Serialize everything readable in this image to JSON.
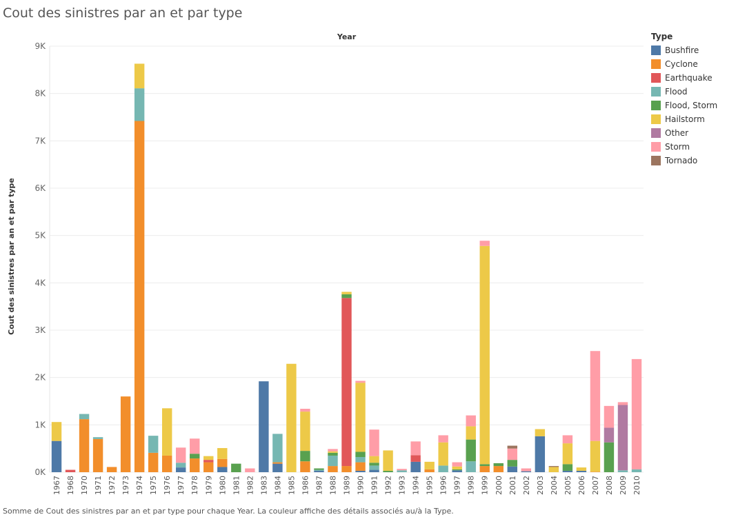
{
  "title": "Cout des sinistres par an et par type",
  "footer": "Somme de Cout des sinistres par an et par type pour chaque Year.  La couleur affiche des détails associés au/à la Type.",
  "chart_data": {
    "type": "bar",
    "stacked": true,
    "title": "Cout des sinistres par an et par type",
    "xlabel": "Year",
    "ylabel": "Cout des sinistres par an et par type",
    "ylim": [
      0,
      9000
    ],
    "yticks": [
      0,
      1000,
      2000,
      3000,
      4000,
      5000,
      6000,
      7000,
      8000,
      9000
    ],
    "ytick_labels": [
      "0K",
      "1K",
      "2K",
      "3K",
      "4K",
      "5K",
      "6K",
      "7K",
      "8K",
      "9K"
    ],
    "legend_title": "Type",
    "legend_position": "right",
    "categories": [
      "1967",
      "1968",
      "1970",
      "1971",
      "1972",
      "1973",
      "1974",
      "1975",
      "1976",
      "1977",
      "1978",
      "1979",
      "1980",
      "1981",
      "1982",
      "1983",
      "1984",
      "1985",
      "1986",
      "1987",
      "1988",
      "1989",
      "1990",
      "1991",
      "1992",
      "1993",
      "1994",
      "1995",
      "1996",
      "1997",
      "1998",
      "1999",
      "2000",
      "2001",
      "2002",
      "2003",
      "2004",
      "2005",
      "2006",
      "2007",
      "2008",
      "2009",
      "2010"
    ],
    "series": [
      {
        "name": "Bushfire",
        "color": "#4E79A7",
        "values": [
          660,
          0,
          0,
          0,
          0,
          0,
          0,
          0,
          0,
          100,
          0,
          0,
          110,
          0,
          0,
          1920,
          180,
          0,
          0,
          30,
          0,
          0,
          30,
          50,
          0,
          0,
          220,
          0,
          0,
          40,
          0,
          0,
          0,
          120,
          20,
          760,
          0,
          30,
          30,
          0,
          0,
          0,
          0
        ]
      },
      {
        "name": "Cyclone",
        "color": "#F28E2B",
        "values": [
          0,
          0,
          1120,
          700,
          110,
          1600,
          7420,
          410,
          350,
          0,
          290,
          210,
          170,
          0,
          0,
          0,
          30,
          0,
          230,
          0,
          130,
          130,
          180,
          0,
          0,
          0,
          0,
          60,
          0,
          0,
          0,
          130,
          130,
          0,
          0,
          0,
          0,
          0,
          0,
          10,
          0,
          0,
          0
        ]
      },
      {
        "name": "Earthquake",
        "color": "#E15759",
        "values": [
          0,
          50,
          0,
          0,
          0,
          0,
          0,
          0,
          0,
          0,
          0,
          50,
          0,
          0,
          0,
          0,
          0,
          0,
          0,
          0,
          0,
          3550,
          0,
          0,
          0,
          0,
          140,
          0,
          0,
          0,
          0,
          0,
          0,
          0,
          0,
          0,
          0,
          0,
          0,
          0,
          0,
          0,
          0
        ]
      },
      {
        "name": "Flood",
        "color": "#76B7B2",
        "values": [
          0,
          0,
          110,
          40,
          0,
          0,
          690,
          360,
          0,
          100,
          0,
          0,
          0,
          0,
          0,
          0,
          600,
          0,
          0,
          20,
          220,
          0,
          110,
          90,
          0,
          40,
          0,
          0,
          140,
          0,
          230,
          0,
          0,
          0,
          0,
          0,
          0,
          0,
          0,
          0,
          0,
          40,
          60
        ]
      },
      {
        "name": "Flood, Storm",
        "color": "#59A14F",
        "values": [
          0,
          0,
          0,
          0,
          0,
          0,
          0,
          0,
          0,
          0,
          100,
          0,
          0,
          180,
          0,
          0,
          0,
          0,
          220,
          30,
          60,
          80,
          110,
          60,
          30,
          0,
          0,
          0,
          0,
          20,
          460,
          40,
          60,
          140,
          0,
          0,
          0,
          140,
          0,
          0,
          630,
          0,
          0
        ]
      },
      {
        "name": "Hailstorm",
        "color": "#EDC948",
        "values": [
          400,
          0,
          0,
          0,
          0,
          0,
          520,
          0,
          1000,
          0,
          0,
          80,
          230,
          0,
          0,
          0,
          0,
          2290,
          830,
          0,
          30,
          50,
          1460,
          140,
          430,
          0,
          0,
          160,
          490,
          60,
          280,
          4610,
          0,
          0,
          0,
          150,
          110,
          440,
          70,
          650,
          0,
          0,
          0
        ]
      },
      {
        "name": "Other",
        "color": "#B07AA1",
        "values": [
          0,
          0,
          0,
          0,
          0,
          0,
          0,
          0,
          0,
          0,
          0,
          0,
          0,
          0,
          0,
          0,
          0,
          0,
          0,
          0,
          0,
          0,
          0,
          0,
          0,
          0,
          0,
          0,
          0,
          0,
          0,
          0,
          0,
          0,
          0,
          0,
          0,
          0,
          0,
          0,
          310,
          1380,
          0
        ]
      },
      {
        "name": "Storm",
        "color": "#FF9DA7",
        "values": [
          0,
          0,
          0,
          0,
          0,
          0,
          0,
          0,
          0,
          320,
          320,
          0,
          0,
          0,
          80,
          0,
          0,
          0,
          60,
          0,
          50,
          0,
          40,
          560,
          0,
          30,
          290,
          0,
          150,
          90,
          230,
          110,
          0,
          240,
          60,
          0,
          0,
          170,
          0,
          1900,
          460,
          60,
          2330
        ]
      },
      {
        "name": "Tornado",
        "color": "#9C755F",
        "values": [
          0,
          0,
          0,
          0,
          0,
          0,
          0,
          0,
          0,
          0,
          0,
          0,
          0,
          0,
          0,
          0,
          0,
          0,
          0,
          0,
          0,
          0,
          0,
          0,
          0,
          0,
          0,
          0,
          0,
          0,
          0,
          0,
          0,
          60,
          0,
          0,
          20,
          0,
          0,
          0,
          0,
          0,
          0
        ]
      }
    ]
  }
}
